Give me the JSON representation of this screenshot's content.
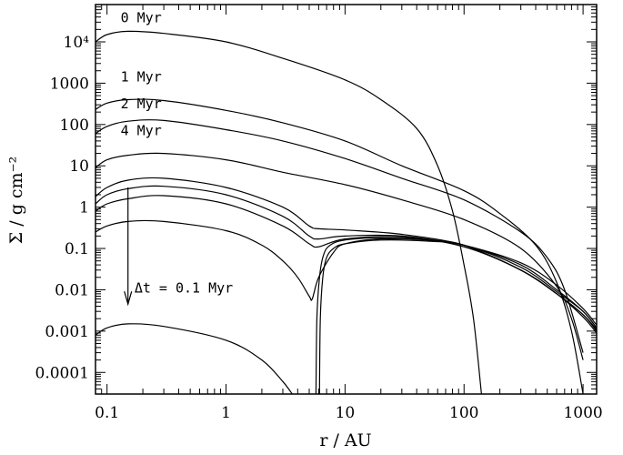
{
  "chart_data": {
    "type": "line",
    "xlabel": "r / AU",
    "ylabel": "Σ / g cm⁻²",
    "xscale": "log",
    "yscale": "log",
    "xlim": [
      0.08,
      1300
    ],
    "ylim": [
      3e-05,
      80000
    ],
    "grid": false,
    "x_ticks": [
      {
        "value": 0.1,
        "label": "0.1"
      },
      {
        "value": 1,
        "label": "1"
      },
      {
        "value": 10,
        "label": "10"
      },
      {
        "value": 100,
        "label": "100"
      },
      {
        "value": 1000,
        "label": "1000"
      }
    ],
    "y_ticks": [
      {
        "value": 0.0001,
        "label": "0.0001"
      },
      {
        "value": 0.001,
        "label": "0.001"
      },
      {
        "value": 0.01,
        "label": "0.01"
      },
      {
        "value": 0.1,
        "label": "0.1"
      },
      {
        "value": 1,
        "label": "1"
      },
      {
        "value": 10,
        "label": "10"
      },
      {
        "value": 100,
        "label": "100"
      },
      {
        "value": 1000,
        "label": "1000"
      },
      {
        "value": 10000,
        "label": "10⁴"
      }
    ],
    "annotations": [
      {
        "text": "0 Myr",
        "x": 0.13,
        "y": 30000
      },
      {
        "text": "1 Myr",
        "x": 0.13,
        "y": 1100
      },
      {
        "text": "2 Myr",
        "x": 0.13,
        "y": 250
      },
      {
        "text": "4 Myr",
        "x": 0.13,
        "y": 55
      },
      {
        "text": "Δt = 0.1 Myr",
        "x": 0.17,
        "y": 0.0085
      }
    ],
    "arrow": {
      "x": 0.15,
      "y_from": 3,
      "y_to": 0.0045
    },
    "series": [
      {
        "values": [
          [
            0.08,
            10000
          ],
          [
            0.1,
            15000
          ],
          [
            0.15,
            18000
          ],
          [
            0.3,
            16000
          ],
          [
            1,
            10000
          ],
          [
            3,
            4000
          ],
          [
            10,
            1200
          ],
          [
            20,
            400
          ],
          [
            40,
            80
          ],
          [
            60,
            10
          ],
          [
            80,
            0.8
          ],
          [
            100,
            0.04
          ],
          [
            120,
            0.002
          ],
          [
            140,
            3e-05
          ]
        ]
      },
      {
        "values": [
          [
            0.08,
            230
          ],
          [
            0.1,
            330
          ],
          [
            0.15,
            400
          ],
          [
            0.3,
            380
          ],
          [
            1,
            220
          ],
          [
            3,
            110
          ],
          [
            10,
            40
          ],
          [
            30,
            10
          ],
          [
            100,
            2.5
          ],
          [
            200,
            0.7
          ],
          [
            400,
            0.12
          ],
          [
            600,
            0.015
          ],
          [
            800,
            0.001
          ],
          [
            1000,
            3e-05
          ]
        ]
      },
      {
        "values": [
          [
            0.08,
            60
          ],
          [
            0.1,
            90
          ],
          [
            0.15,
            120
          ],
          [
            0.3,
            125
          ],
          [
            1,
            75
          ],
          [
            3,
            40
          ],
          [
            10,
            15
          ],
          [
            30,
            5
          ],
          [
            100,
            1.5
          ],
          [
            300,
            0.25
          ],
          [
            500,
            0.06
          ],
          [
            700,
            0.01
          ],
          [
            1000,
            0.0003
          ]
        ]
      },
      {
        "values": [
          [
            0.08,
            9
          ],
          [
            0.1,
            14
          ],
          [
            0.15,
            18
          ],
          [
            0.3,
            20
          ],
          [
            1,
            14
          ],
          [
            3,
            7
          ],
          [
            10,
            3.5
          ],
          [
            30,
            1.5
          ],
          [
            100,
            0.5
          ],
          [
            300,
            0.1
          ],
          [
            600,
            0.012
          ],
          [
            800,
            0.002
          ],
          [
            1000,
            0.0002
          ]
        ]
      },
      {
        "values": [
          [
            0.08,
            1.8
          ],
          [
            0.1,
            3
          ],
          [
            0.15,
            4.5
          ],
          [
            0.3,
            5
          ],
          [
            1,
            3
          ],
          [
            3,
            1
          ],
          [
            5,
            0.35
          ],
          [
            6,
            0.3
          ],
          [
            10,
            0.28
          ],
          [
            30,
            0.22
          ],
          [
            100,
            0.12
          ],
          [
            300,
            0.035
          ],
          [
            600,
            0.009
          ],
          [
            1000,
            0.003
          ],
          [
            1300,
            0.0012
          ]
        ]
      },
      {
        "values": [
          [
            0.08,
            1.2
          ],
          [
            0.1,
            2
          ],
          [
            0.15,
            2.8
          ],
          [
            0.3,
            3.2
          ],
          [
            1,
            2
          ],
          [
            3,
            0.6
          ],
          [
            5,
            0.2
          ],
          [
            6,
            0.17
          ],
          [
            10,
            0.2
          ],
          [
            30,
            0.2
          ],
          [
            100,
            0.11
          ],
          [
            300,
            0.03
          ],
          [
            600,
            0.008
          ],
          [
            1000,
            0.0025
          ],
          [
            1300,
            0.001
          ]
        ]
      },
      {
        "values": [
          [
            0.08,
            0.8
          ],
          [
            0.1,
            1.2
          ],
          [
            0.15,
            1.6
          ],
          [
            0.3,
            1.9
          ],
          [
            1,
            1.2
          ],
          [
            3,
            0.35
          ],
          [
            5,
            0.13
          ],
          [
            6,
            0.11
          ],
          [
            10,
            0.17
          ],
          [
            30,
            0.19
          ],
          [
            100,
            0.11
          ],
          [
            300,
            0.03
          ],
          [
            600,
            0.008
          ],
          [
            1000,
            0.0022
          ],
          [
            1300,
            0.0009
          ]
        ]
      },
      {
        "values": [
          [
            0.08,
            0.25
          ],
          [
            0.1,
            0.35
          ],
          [
            0.15,
            0.45
          ],
          [
            0.3,
            0.45
          ],
          [
            1,
            0.27
          ],
          [
            2,
            0.12
          ],
          [
            3,
            0.05
          ],
          [
            4,
            0.02
          ],
          [
            5,
            0.007
          ],
          [
            5.3,
            0.006
          ],
          [
            6,
            0.02
          ],
          [
            8,
            0.08
          ],
          [
            10,
            0.13
          ],
          [
            20,
            0.17
          ],
          [
            50,
            0.16
          ],
          [
            100,
            0.12
          ],
          [
            300,
            0.03
          ],
          [
            600,
            0.008
          ],
          [
            1000,
            0.0025
          ],
          [
            1300,
            0.0011
          ]
        ]
      },
      {
        "values": [
          [
            6.1,
            3e-05
          ],
          [
            6.2,
            0.002
          ],
          [
            6.5,
            0.02
          ],
          [
            7,
            0.06
          ],
          [
            8,
            0.1
          ],
          [
            10,
            0.13
          ],
          [
            20,
            0.16
          ],
          [
            50,
            0.15
          ],
          [
            100,
            0.12
          ],
          [
            300,
            0.04
          ],
          [
            600,
            0.01
          ],
          [
            1000,
            0.003
          ],
          [
            1300,
            0.0012
          ]
        ]
      },
      {
        "values": [
          [
            5.7,
            3e-05
          ],
          [
            5.8,
            0.002
          ],
          [
            6.1,
            0.02
          ],
          [
            6.6,
            0.07
          ],
          [
            7.5,
            0.12
          ],
          [
            10,
            0.16
          ],
          [
            20,
            0.18
          ],
          [
            50,
            0.16
          ],
          [
            100,
            0.12
          ],
          [
            300,
            0.045
          ],
          [
            600,
            0.013
          ],
          [
            1000,
            0.0035
          ],
          [
            1300,
            0.0014
          ]
        ]
      },
      {
        "values": [
          [
            0.08,
            0.0008
          ],
          [
            0.1,
            0.0012
          ],
          [
            0.15,
            0.0015
          ],
          [
            0.3,
            0.0013
          ],
          [
            1,
            0.0006
          ],
          [
            2,
            0.0002
          ],
          [
            3,
            6e-05
          ],
          [
            3.6,
            3e-05
          ]
        ]
      }
    ]
  }
}
